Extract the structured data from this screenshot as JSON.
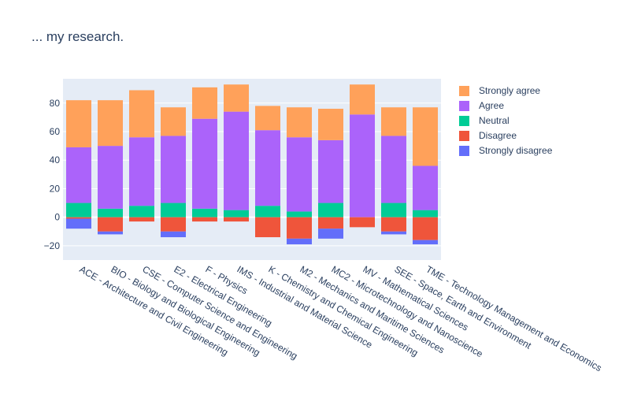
{
  "chart_data": {
    "type": "bar",
    "barmode": "relative",
    "title": "... my research.",
    "xlabel": "",
    "ylabel": "",
    "ylim": [
      -30,
      97
    ],
    "yticks": [
      -20,
      0,
      20,
      40,
      60,
      80
    ],
    "grid": true,
    "legend_position": "right",
    "categories": [
      "ACE - Architecture and Civil Engineering",
      "BIO - Biology and Biological Engineering",
      "CSE - Computer Science and Engineering",
      "E2 - Electrical Engineering",
      "F - Physics",
      "IMS - Industrial and Material Science",
      "K - Chemistry and Chemical Engineering",
      "M2 - Mechanics and Maritime Sciences",
      "MC2 - Microtechnology and Nanoscience",
      "MV - Mathematical Sciences",
      "SEE - Space, Earth and Environment",
      "TME - Technology Management and Economics"
    ],
    "series": [
      {
        "name": "Strongly disagree",
        "color": "#636efa",
        "values": [
          -7,
          -2,
          0,
          -4,
          0,
          0,
          0,
          -4,
          -7,
          0,
          -2,
          -3
        ]
      },
      {
        "name": "Disagree",
        "color": "#ef553b",
        "values": [
          -1,
          -10,
          -3,
          -10,
          -3,
          -3,
          -14,
          -15,
          -8,
          -7,
          -10,
          -16
        ]
      },
      {
        "name": "Neutral",
        "color": "#00cc96",
        "values": [
          10,
          6,
          8,
          10,
          6,
          5,
          8,
          4,
          10,
          0,
          10,
          5
        ]
      },
      {
        "name": "Agree",
        "color": "#ab63fa",
        "values": [
          39,
          44,
          48,
          47,
          63,
          69,
          53,
          52,
          44,
          72,
          47,
          31
        ]
      },
      {
        "name": "Strongly agree",
        "color": "#ffa15a",
        "values": [
          33,
          32,
          33,
          20,
          22,
          19,
          17,
          21,
          22,
          21,
          20,
          41
        ]
      }
    ],
    "colors": {
      "plot_background": "#e5ecf6",
      "grid": "#ffffff",
      "text": "#2a3f5f"
    }
  }
}
